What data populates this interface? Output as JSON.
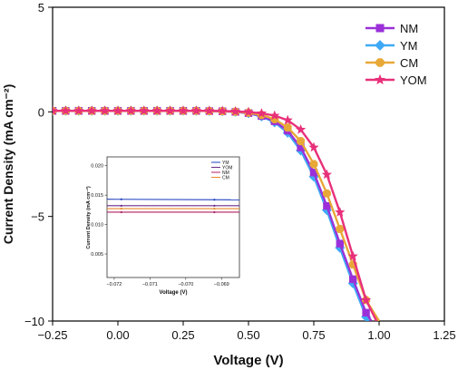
{
  "chart_data": [
    {
      "type": "line",
      "xlabel": "Voltage (V)",
      "ylabel": "Current Density (mA cm⁻²)",
      "xlim": [
        -0.25,
        1.25
      ],
      "ylim": [
        -10,
        5
      ],
      "xticks": [
        -0.25,
        0.0,
        0.25,
        0.5,
        0.75,
        1.0,
        1.25
      ],
      "xtick_labels": [
        "-0.25",
        "0.00",
        "0.25",
        "0.50",
        "0.75",
        "1.00",
        "1.25"
      ],
      "yticks": [
        -10,
        -5,
        0,
        5
      ],
      "ytick_labels": [
        "-10",
        "-5",
        "0",
        "5"
      ],
      "grid": false,
      "legend_position": "top-right",
      "series": [
        {
          "name": "NM",
          "color": "#9b30d9",
          "marker": "square",
          "x": [
            -0.25,
            -0.2,
            -0.15,
            -0.1,
            -0.05,
            0.0,
            0.05,
            0.1,
            0.15,
            0.2,
            0.25,
            0.3,
            0.35,
            0.4,
            0.45,
            0.5,
            0.55,
            0.6,
            0.65,
            0.7,
            0.75,
            0.8,
            0.85,
            0.9,
            0.95,
            0.97
          ],
          "y": [
            0.05,
            0.05,
            0.05,
            0.05,
            0.05,
            0.05,
            0.05,
            0.05,
            0.05,
            0.05,
            0.05,
            0.05,
            0.04,
            0.03,
            0.0,
            -0.06,
            -0.2,
            -0.45,
            -0.9,
            -1.7,
            -2.9,
            -4.5,
            -6.3,
            -8.0,
            -9.6,
            -10
          ]
        },
        {
          "name": "YM",
          "color": "#3fa9f5",
          "marker": "diamond",
          "x": [
            -0.25,
            -0.2,
            -0.15,
            -0.1,
            -0.05,
            0.0,
            0.05,
            0.1,
            0.15,
            0.2,
            0.25,
            0.3,
            0.35,
            0.4,
            0.45,
            0.5,
            0.55,
            0.6,
            0.65,
            0.7,
            0.75,
            0.8,
            0.85,
            0.9,
            0.95,
            0.96
          ],
          "y": [
            0.05,
            0.05,
            0.05,
            0.05,
            0.05,
            0.05,
            0.05,
            0.05,
            0.05,
            0.05,
            0.05,
            0.05,
            0.04,
            0.03,
            0.0,
            -0.07,
            -0.22,
            -0.5,
            -1.0,
            -1.85,
            -3.1,
            -4.7,
            -6.5,
            -8.2,
            -9.8,
            -10
          ]
        },
        {
          "name": "CM",
          "color": "#e8a838",
          "marker": "circle",
          "x": [
            -0.25,
            -0.2,
            -0.15,
            -0.1,
            -0.05,
            0.0,
            0.05,
            0.1,
            0.15,
            0.2,
            0.25,
            0.3,
            0.35,
            0.4,
            0.45,
            0.5,
            0.55,
            0.6,
            0.65,
            0.7,
            0.75,
            0.8,
            0.85,
            0.9,
            0.95,
            1.0
          ],
          "y": [
            0.05,
            0.05,
            0.05,
            0.05,
            0.05,
            0.05,
            0.05,
            0.05,
            0.05,
            0.05,
            0.05,
            0.05,
            0.04,
            0.03,
            0.01,
            -0.04,
            -0.15,
            -0.35,
            -0.75,
            -1.4,
            -2.5,
            -3.9,
            -5.6,
            -7.3,
            -9.0,
            -10
          ]
        },
        {
          "name": "YOM",
          "color": "#e8307a",
          "marker": "star",
          "x": [
            -0.25,
            -0.2,
            -0.15,
            -0.1,
            -0.05,
            0.0,
            0.05,
            0.1,
            0.15,
            0.2,
            0.25,
            0.3,
            0.35,
            0.4,
            0.45,
            0.5,
            0.55,
            0.6,
            0.65,
            0.7,
            0.75,
            0.8,
            0.85,
            0.9,
            0.95,
            0.99
          ],
          "y": [
            0.05,
            0.05,
            0.05,
            0.05,
            0.05,
            0.05,
            0.05,
            0.05,
            0.05,
            0.05,
            0.05,
            0.05,
            0.05,
            0.04,
            0.02,
            -0.01,
            -0.07,
            -0.18,
            -0.4,
            -0.85,
            -1.7,
            -3.0,
            -4.8,
            -6.9,
            -9.0,
            -10
          ]
        }
      ]
    },
    {
      "type": "line",
      "xlabel": "Voltage (V)",
      "ylabel": "Current Density (mA cm⁻²)",
      "xlim": [
        -0.0722,
        -0.0685
      ],
      "ylim": [
        0.001,
        0.0215
      ],
      "xticks": [
        -0.072,
        -0.071,
        -0.07,
        -0.069
      ],
      "xtick_labels": [
        "-0.072",
        "-0.071",
        "-0.070",
        "-0.069"
      ],
      "yticks": [
        0.005,
        0.01,
        0.015,
        0.02
      ],
      "ytick_labels": [
        "0.005",
        "0.010",
        "0.015",
        "0.020"
      ],
      "grid": false,
      "legend_position": "top-left",
      "series": [
        {
          "name": "YM",
          "color": "#1f3fbf",
          "x": [
            -0.0722,
            -0.0685
          ],
          "y": [
            0.0143,
            0.0142
          ]
        },
        {
          "name": "YOM",
          "color": "#6a2a8a",
          "x": [
            -0.0722,
            -0.0685
          ],
          "y": [
            0.0132,
            0.0132
          ]
        },
        {
          "name": "NM",
          "color": "#b02060",
          "x": [
            -0.0722,
            -0.0685
          ],
          "y": [
            0.0121,
            0.0121
          ]
        },
        {
          "name": "CM",
          "color": "#e8892a",
          "x": [
            -0.0722,
            -0.0685
          ],
          "y": [
            0.0127,
            0.0127
          ]
        }
      ]
    }
  ]
}
